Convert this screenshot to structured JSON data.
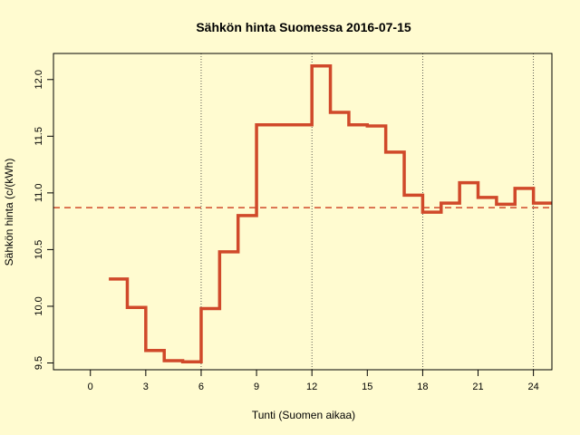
{
  "chart_data": {
    "type": "line",
    "step": true,
    "title": "Sähkön hinta Suomessa 2016-07-15",
    "xlabel": "Tunti (Suomen aikaa)",
    "ylabel": "Sähkön hinta (c/(kWh)",
    "xlim": [
      -2,
      25
    ],
    "ylim": [
      9.44,
      12.23
    ],
    "x_ticks": [
      0,
      3,
      6,
      9,
      12,
      15,
      18,
      21,
      24
    ],
    "x_tick_labels": [
      "0",
      "3",
      "6",
      "9",
      "12",
      "15",
      "18",
      "21",
      "24"
    ],
    "y_ticks": [
      9.5,
      10.0,
      10.5,
      11.0,
      11.5,
      12.0
    ],
    "y_tick_labels": [
      "9.5",
      "10.0",
      "10.5",
      "11.0",
      "11.5",
      "12.0"
    ],
    "vertical_gridlines_x": [
      6,
      12,
      18,
      24
    ],
    "mean_line": 10.87,
    "line_color": "#d0492a",
    "background_color": "#fffbd0",
    "series": [
      {
        "hours": [
          1,
          2,
          3,
          4,
          5,
          6,
          7,
          8,
          9,
          10,
          11,
          12,
          13,
          14,
          15,
          16,
          17,
          18,
          19,
          20,
          21,
          22,
          23,
          24
        ],
        "values": [
          10.24,
          9.99,
          9.61,
          9.52,
          9.51,
          9.98,
          10.48,
          10.8,
          11.6,
          11.6,
          11.6,
          12.12,
          11.71,
          11.6,
          11.59,
          11.36,
          10.98,
          10.83,
          10.91,
          11.09,
          10.96,
          10.9,
          11.04,
          10.91
        ]
      }
    ]
  }
}
